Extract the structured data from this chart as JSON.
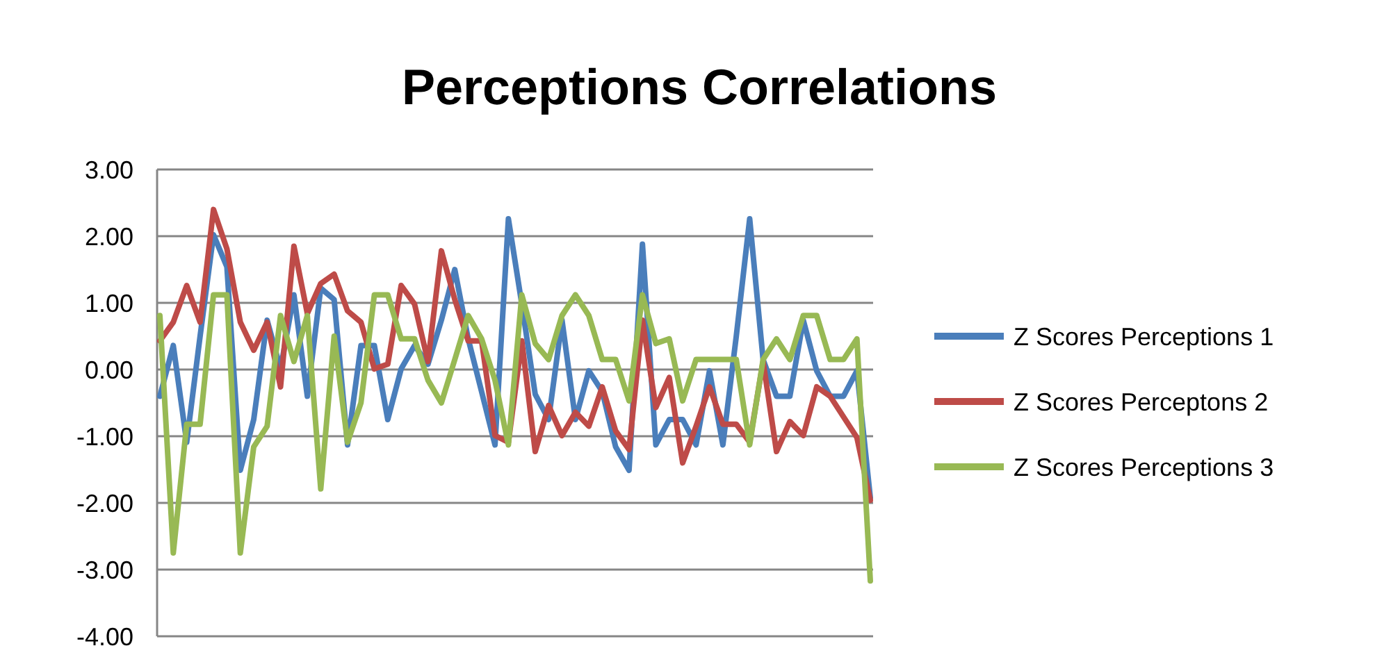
{
  "chart_data": {
    "type": "line",
    "title": "Perceptions Correlations",
    "categories": [
      null,
      null,
      null,
      null,
      null,
      null,
      null,
      null,
      null,
      null,
      null,
      null,
      null,
      null,
      null,
      null,
      null,
      null,
      null,
      null,
      null,
      null,
      null,
      null,
      null,
      null,
      null,
      null,
      null,
      null,
      null,
      null,
      null,
      null,
      null,
      null,
      null,
      null,
      null,
      null,
      null,
      null,
      null,
      null,
      null,
      null,
      null,
      null,
      null,
      null,
      null,
      null,
      null,
      null
    ],
    "series": [
      {
        "name": "Z Scores Perceptions 1",
        "color": "#4a7ebb",
        "values": [
          -0.4,
          0.36,
          -1.09,
          0.5,
          2.02,
          1.54,
          -1.51,
          -0.75,
          0.74,
          0.01,
          1.12,
          -0.4,
          1.22,
          1.05,
          -1.13,
          0.36,
          0.36,
          -0.75,
          0.01,
          0.36,
          0.08,
          0.74,
          1.5,
          0.46,
          -0.33,
          -1.13,
          2.26,
          0.98,
          -0.37,
          -0.75,
          0.74,
          -0.75,
          -0.02,
          -0.33,
          -1.16,
          -1.51,
          1.88,
          -1.13,
          -0.75,
          -0.75,
          -1.13,
          -0.02,
          -1.13,
          0.5,
          2.26,
          0.15,
          -0.4,
          -0.4,
          0.74,
          -0.02,
          -0.4,
          -0.4,
          -0.02,
          -1.92
        ]
      },
      {
        "name": "Z Scores Perceptons 2",
        "color": "#be4b48",
        "values": [
          0.43,
          0.71,
          1.26,
          0.71,
          2.4,
          1.81,
          0.71,
          0.29,
          0.71,
          -0.26,
          1.85,
          0.84,
          1.29,
          1.43,
          0.88,
          0.71,
          0.01,
          0.08,
          1.26,
          0.98,
          0.12,
          1.78,
          1.05,
          0.43,
          0.43,
          -0.99,
          -1.09,
          0.43,
          -1.23,
          -0.54,
          -0.99,
          -0.64,
          -0.85,
          -0.26,
          -0.92,
          -1.2,
          0.74,
          -0.57,
          -0.12,
          -1.4,
          -0.85,
          -0.26,
          -0.82,
          -0.82,
          -1.09,
          0.12,
          -1.23,
          -0.78,
          -0.99,
          -0.26,
          -0.4,
          -0.71,
          -1.02,
          -1.96
        ]
      },
      {
        "name": "Z Scores Perceptions 3",
        "color": "#98b954",
        "values": [
          0.81,
          -2.75,
          -0.82,
          -0.82,
          1.12,
          1.12,
          -2.75,
          -1.16,
          -0.85,
          0.81,
          0.12,
          0.81,
          -1.79,
          0.5,
          -1.09,
          -0.5,
          1.12,
          1.12,
          0.46,
          0.46,
          -0.16,
          -0.5,
          0.15,
          0.81,
          0.46,
          -0.16,
          -1.13,
          1.12,
          0.39,
          0.15,
          0.81,
          1.12,
          0.81,
          0.15,
          0.15,
          -0.47,
          1.12,
          0.39,
          0.46,
          -0.47,
          0.15,
          0.15,
          0.15,
          0.15,
          -1.13,
          0.15,
          0.46,
          0.15,
          0.81,
          0.81,
          0.15,
          0.15,
          0.46,
          -3.17
        ]
      }
    ],
    "ylim": [
      -4,
      3
    ],
    "yticks": [
      {
        "value": -4,
        "label": "-4.00"
      },
      {
        "value": -3,
        "label": "-3.00"
      },
      {
        "value": -2,
        "label": "-2.00"
      },
      {
        "value": -1,
        "label": "-1.00"
      },
      {
        "value": 0,
        "label": "0.00"
      },
      {
        "value": 1,
        "label": "1.00"
      },
      {
        "value": 2,
        "label": "2.00"
      },
      {
        "value": 3,
        "label": "3.00"
      }
    ],
    "grid": "y",
    "legend": "right",
    "line_style": "solid",
    "marker": "none"
  }
}
